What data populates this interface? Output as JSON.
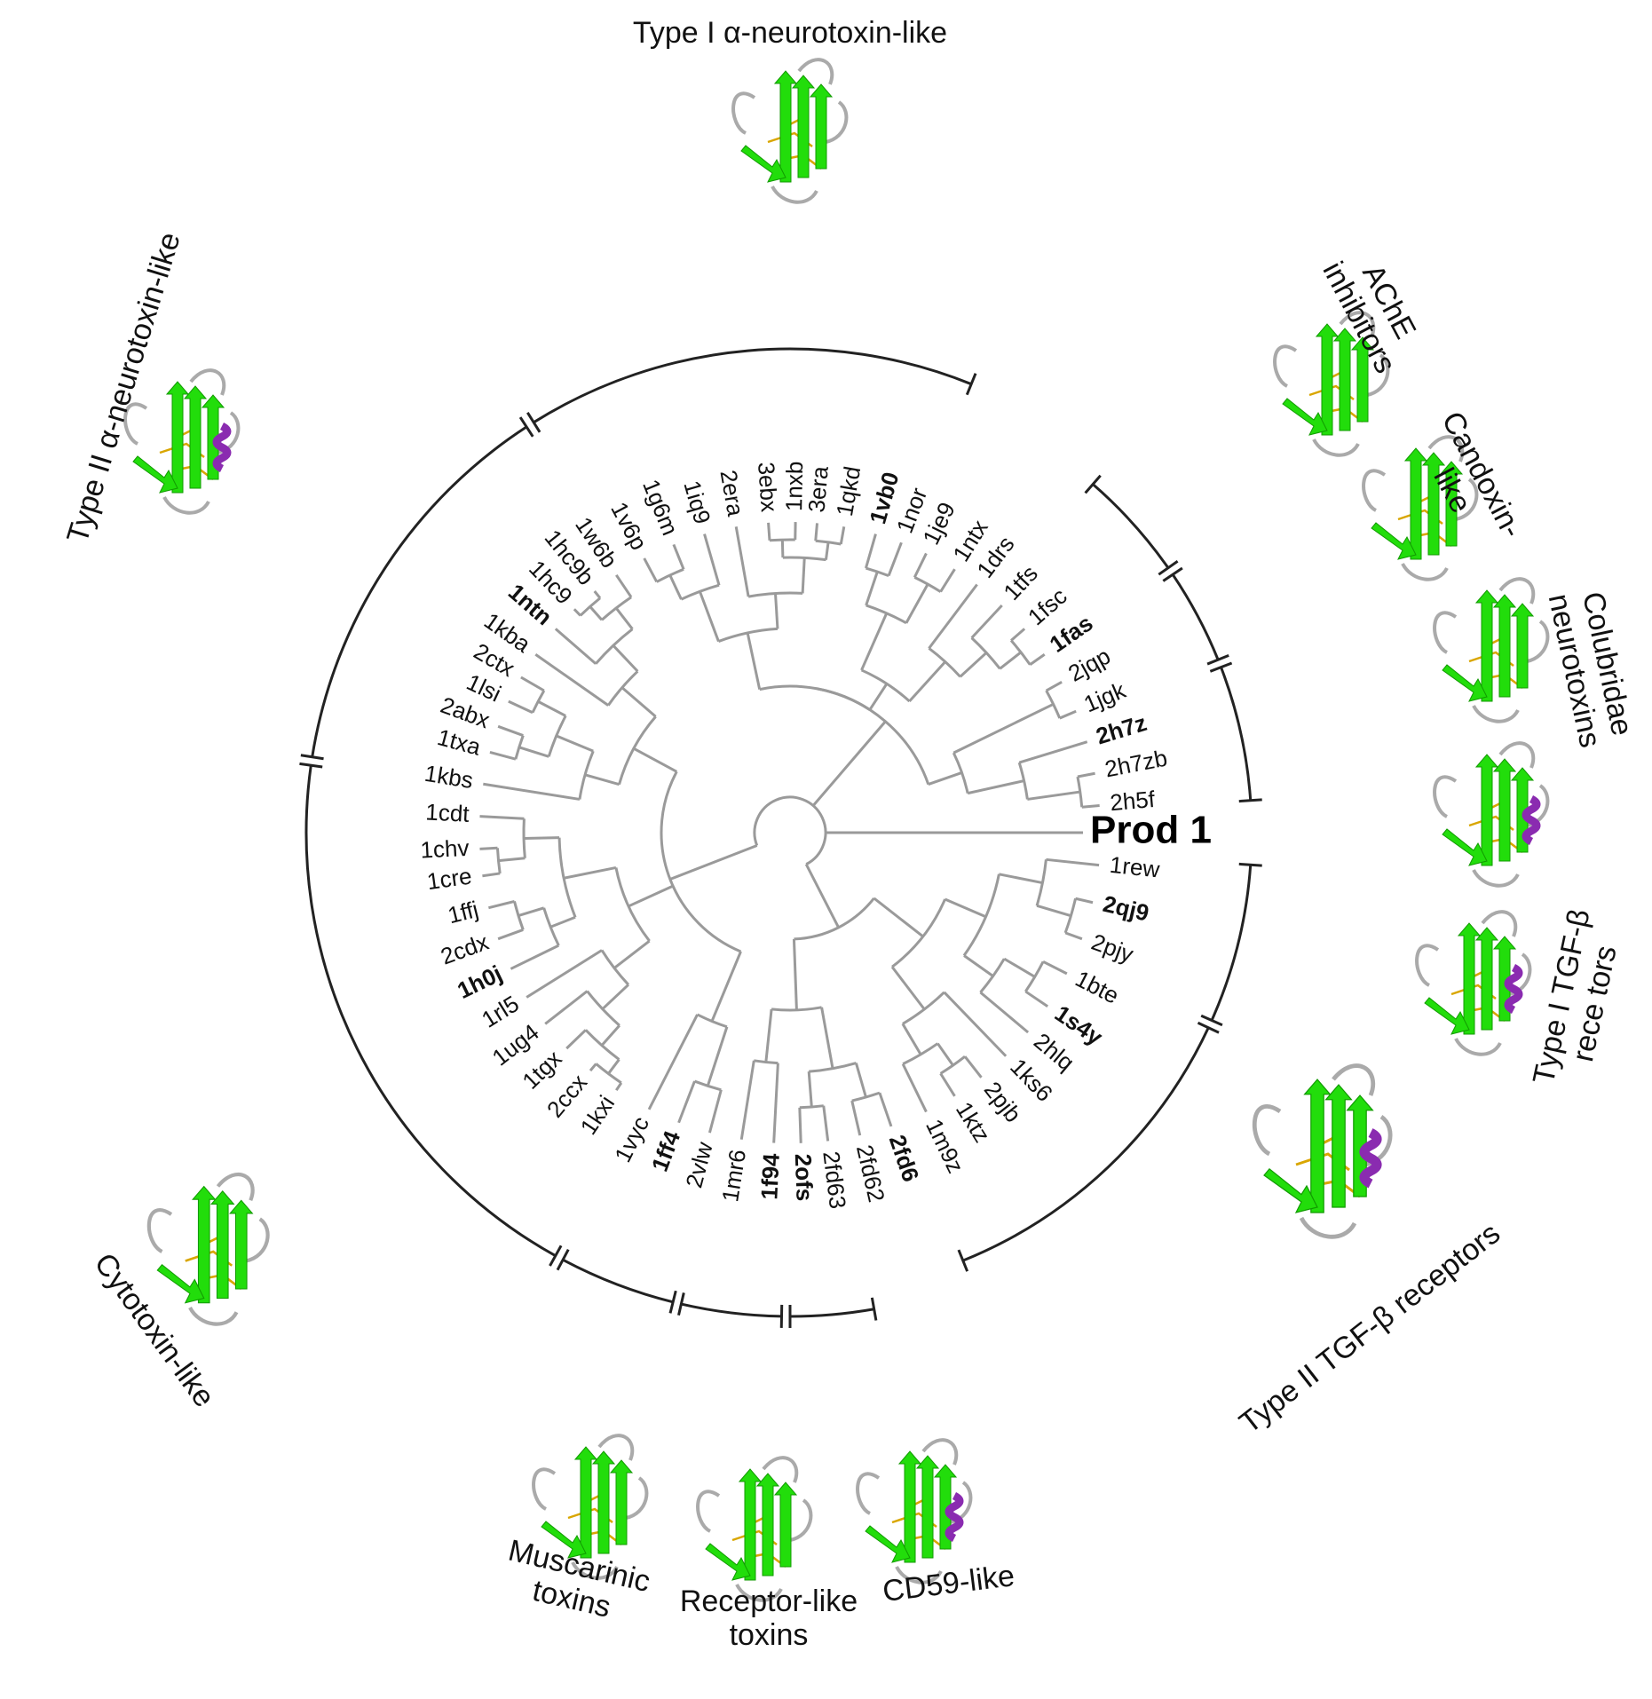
{
  "colors": {
    "strand": "#22dd0b",
    "helix": "#8a2bb0",
    "loop": "#aaaaaa",
    "disulfide": "#d9a600",
    "branch": "#9a9a9a",
    "bracket": "#222222"
  },
  "leaves": [
    {
      "id": "prod",
      "label": "Prod 1",
      "angle": 0,
      "bold": true
    },
    {
      "id": "1rew",
      "label": "1rew",
      "angle": 6
    },
    {
      "id": "2qj9",
      "label": "2qj9",
      "angle": 13,
      "bold": true
    },
    {
      "id": "2pjy",
      "label": "2pjy",
      "angle": 20
    },
    {
      "id": "1bte",
      "label": "1bte",
      "angle": 27
    },
    {
      "id": "1s4y",
      "label": "1s4y",
      "angle": 34,
      "bold": true
    },
    {
      "id": "2hlq",
      "label": "2hlq",
      "angle": 40
    },
    {
      "id": "1ks6",
      "label": "1ks6",
      "angle": 46
    },
    {
      "id": "2pjb",
      "label": "2pjb",
      "angle": 52
    },
    {
      "id": "1ktz",
      "label": "1ktz",
      "angle": 58
    },
    {
      "id": "1m9z",
      "label": "1m9z",
      "angle": 64
    },
    {
      "id": "2fd6",
      "label": "2fd6",
      "angle": 71,
      "bold": true
    },
    {
      "id": "2fd62",
      "label": "2fd62",
      "angle": 77
    },
    {
      "id": "2fd63",
      "label": "2fd63",
      "angle": 83
    },
    {
      "id": "2ofs",
      "label": "2ofs",
      "angle": 88,
      "bold": true
    },
    {
      "id": "1f94",
      "label": "1f94",
      "angle": 93,
      "bold": true
    },
    {
      "id": "1mr6",
      "label": "1mr6",
      "angle": 99
    },
    {
      "id": "2vlw",
      "label": "2vlw",
      "angle": 105
    },
    {
      "id": "1ff4",
      "label": "1ff4",
      "angle": 111,
      "bold": true
    },
    {
      "id": "1vyc",
      "label": "1vyc",
      "angle": 117
    },
    {
      "id": "1kxi",
      "label": "1kxi",
      "angle": 124
    },
    {
      "id": "2ccx",
      "label": "2ccx",
      "angle": 130
    },
    {
      "id": "1tgx",
      "label": "1tgx",
      "angle": 136
    },
    {
      "id": "1ug4",
      "label": "1ug4",
      "angle": 142
    },
    {
      "id": "1rl5",
      "label": "1rl5",
      "angle": 148
    },
    {
      "id": "1h0j",
      "label": "1h0j",
      "angle": 154,
      "bold": true
    },
    {
      "id": "2cdx",
      "label": "2cdx",
      "angle": 160
    },
    {
      "id": "1ffj",
      "label": "1ffj",
      "angle": 166
    },
    {
      "id": "1cre",
      "label": "1cre",
      "angle": 172
    },
    {
      "id": "1chv",
      "label": "1chv",
      "angle": 177
    },
    {
      "id": "1cdt",
      "label": "1cdt",
      "angle": 183
    },
    {
      "id": "1kbs",
      "label": "1kbs",
      "angle": 189
    },
    {
      "id": "1txa",
      "label": "1txa",
      "angle": 195
    },
    {
      "id": "2abx",
      "label": "2abx",
      "angle": 200
    },
    {
      "id": "1lsi",
      "label": "1lsi",
      "angle": 205
    },
    {
      "id": "2ctx",
      "label": "2ctx",
      "angle": 210
    },
    {
      "id": "1kba",
      "label": "1kba",
      "angle": 215
    },
    {
      "id": "1ntn",
      "label": "1ntn",
      "angle": 221,
      "bold": true
    },
    {
      "id": "1hc9",
      "label": "1hc9",
      "angle": 226
    },
    {
      "id": "1hc9b",
      "label": "1hc9b",
      "angle": 231
    },
    {
      "id": "1w6b",
      "label": "1w6b",
      "angle": 236
    },
    {
      "id": "1v6p",
      "label": "1v6p",
      "angle": 242
    },
    {
      "id": "1g6m",
      "label": "1g6m",
      "angle": 248
    },
    {
      "id": "1iq9",
      "label": "1iq9",
      "angle": 254
    },
    {
      "id": "2era",
      "label": "2era",
      "angle": 260
    },
    {
      "id": "3ebx",
      "label": "3ebx",
      "angle": 266
    },
    {
      "id": "1nxb",
      "label": "1nxb",
      "angle": 271
    },
    {
      "id": "3era",
      "label": "3era",
      "angle": 275
    },
    {
      "id": "1qkd",
      "label": "1qkd",
      "angle": 280
    },
    {
      "id": "1vb0",
      "label": "1vb0",
      "angle": 286,
      "bold": true
    },
    {
      "id": "1nor",
      "label": "1nor",
      "angle": 291
    },
    {
      "id": "1je9",
      "label": "1je9",
      "angle": 296
    },
    {
      "id": "1ntx",
      "label": "1ntx",
      "angle": 302
    },
    {
      "id": "1drs",
      "label": "1drs",
      "angle": 307
    },
    {
      "id": "1tfs",
      "label": "1tfs",
      "angle": 313
    },
    {
      "id": "1fsc",
      "label": "1fsc",
      "angle": 319
    },
    {
      "id": "1fas",
      "label": "1fas",
      "angle": 325,
      "bold": true
    },
    {
      "id": "2jqp",
      "label": "2jqp",
      "angle": 331
    },
    {
      "id": "1jgk",
      "label": "1jgk",
      "angle": 337
    },
    {
      "id": "2h7z",
      "label": "2h7z",
      "angle": 343,
      "bold": true
    },
    {
      "id": "2h7zb",
      "label": "2h7zb",
      "angle": 349
    },
    {
      "id": "2h5f",
      "label": "2h5f",
      "angle": 355
    }
  ],
  "groups": [
    {
      "id": "type1-alpha",
      "lines": [
        "Type I α-neurotoxin-like"
      ]
    },
    {
      "id": "type2-alpha",
      "lines": [
        "Type II α-neurotoxin-like"
      ]
    },
    {
      "id": "ache",
      "lines": [
        "AChE",
        "inhibitors"
      ]
    },
    {
      "id": "candoxin",
      "lines": [
        "Candoxin-",
        "like"
      ]
    },
    {
      "id": "colubridae",
      "lines": [
        "Colubridae",
        "neurotoxins"
      ]
    },
    {
      "id": "type1-tgf",
      "lines": [
        "Type I TGF-β",
        "rece    tors"
      ]
    },
    {
      "id": "type2-tgf",
      "lines": [
        "Type II TGF-β  receptors"
      ]
    },
    {
      "id": "cytotoxin",
      "lines": [
        "Cytotoxin-like"
      ]
    },
    {
      "id": "muscarinic",
      "lines": [
        "Muscarinic",
        "toxins"
      ]
    },
    {
      "id": "receptor-like",
      "lines": [
        "Receptor-like",
        "toxins"
      ]
    },
    {
      "id": "cd59",
      "lines": [
        "CD59-like"
      ]
    }
  ]
}
